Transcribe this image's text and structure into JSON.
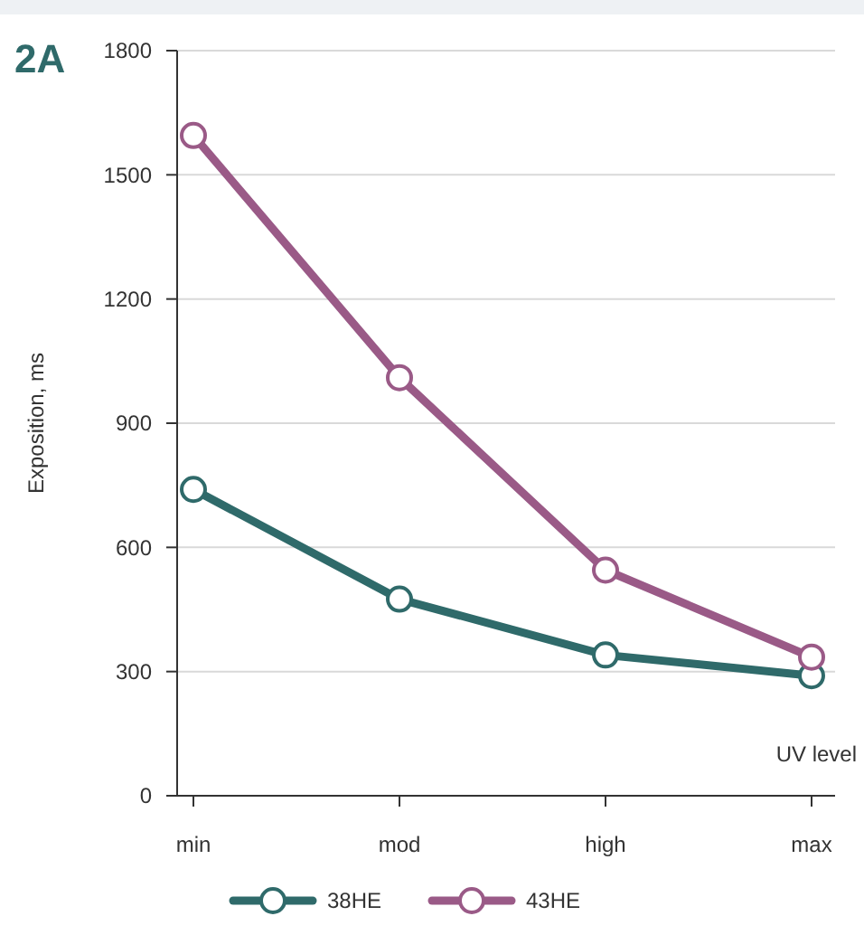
{
  "chart_data": {
    "type": "line",
    "title": "2A",
    "xlabel": "UV level",
    "ylabel": "Exposition, ms",
    "categories": [
      "min",
      "mod",
      "high",
      "max"
    ],
    "series": [
      {
        "name": "38HE",
        "color": "#2f6a6a",
        "values": [
          740,
          475,
          340,
          290
        ]
      },
      {
        "name": "43HE",
        "color": "#9a5a87",
        "values": [
          1595,
          1010,
          545,
          335
        ]
      }
    ],
    "ylim": [
      0,
      1800
    ],
    "yticks": [
      0,
      300,
      600,
      900,
      1200,
      1500,
      1800
    ],
    "grid": "y",
    "legend": "bottom",
    "marker": "circle",
    "line_style": "solid"
  }
}
